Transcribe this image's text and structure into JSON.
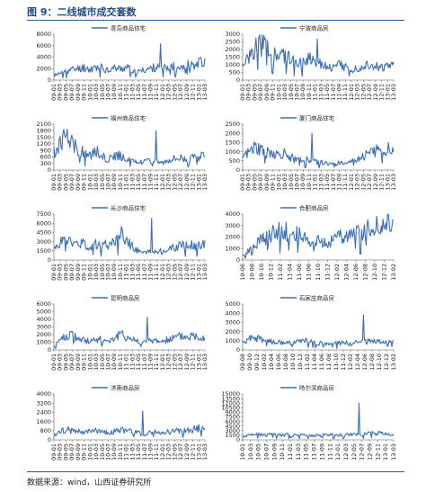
{
  "figure": {
    "title": "图 9：二线城市成交套数",
    "source": "数据来源：wind，山西证券研究所"
  },
  "chart_data": [
    {
      "type": "line",
      "series": [
        {
          "name": "青岛商品住宅"
        }
      ],
      "ylim": [
        0,
        8000
      ],
      "yticks": [
        0,
        2000,
        4000,
        6000,
        8000
      ],
      "categories": [
        "09-01",
        "09-03",
        "09-05",
        "09-07",
        "09-09",
        "09-11",
        "10-01",
        "10-03",
        "10-05",
        "10-07",
        "10-09",
        "10-11",
        "11-01",
        "11-03",
        "11-05",
        "11-07",
        "11-09",
        "11-11",
        "12-01",
        "12-03",
        "12-05",
        "12-07",
        "12-09",
        "12-11",
        "13-01",
        "13-03"
      ],
      "values": [
        900,
        1100,
        1600,
        1800,
        2000,
        2200,
        1900,
        2300,
        2100,
        1800,
        2100,
        2000,
        2200,
        1700,
        1400,
        1800,
        2000,
        2300,
        1900,
        2200,
        2400,
        2500,
        2600,
        2800,
        3000,
        3500
      ],
      "peak": 6300,
      "color": "#3b6eb4"
    },
    {
      "type": "line",
      "series": [
        {
          "name": "宁波商品房"
        }
      ],
      "ylim": [
        0,
        3000
      ],
      "yticks": [
        0,
        500,
        1000,
        1500,
        2000,
        2500,
        3000
      ],
      "categories": [
        "09-01",
        "09-03",
        "09-05",
        "09-07",
        "09-09",
        "09-11",
        "10-01",
        "10-03",
        "10-05",
        "10-07",
        "10-09",
        "10-11",
        "11-01",
        "11-03",
        "11-05",
        "11-07",
        "11-09",
        "11-11",
        "12-01",
        "12-03",
        "12-05",
        "12-07",
        "12-09",
        "12-11",
        "13-01",
        "13-03"
      ],
      "values": [
        900,
        1400,
        2000,
        2300,
        2100,
        1800,
        1500,
        1600,
        1300,
        1000,
        1200,
        1500,
        1300,
        1100,
        900,
        800,
        1000,
        900,
        700,
        800,
        900,
        1100,
        900,
        800,
        900,
        1000
      ],
      "peak": 2700,
      "color": "#3b6eb4"
    },
    {
      "type": "line",
      "series": [
        {
          "name": "福州商品住宅"
        }
      ],
      "ylim": [
        0,
        2100
      ],
      "yticks": [
        0,
        300,
        600,
        900,
        1200,
        1500,
        1800,
        2100
      ],
      "categories": [
        "09-01",
        "09-03",
        "09-05",
        "09-07",
        "09-09",
        "09-11",
        "10-01",
        "10-03",
        "10-05",
        "10-07",
        "10-09",
        "10-11",
        "11-01",
        "11-03",
        "11-05",
        "11-07",
        "11-09",
        "11-11",
        "12-01",
        "12-03",
        "12-05",
        "12-07",
        "12-09",
        "12-11",
        "13-01",
        "13-03"
      ],
      "values": [
        800,
        1200,
        1500,
        1300,
        900,
        800,
        700,
        900,
        600,
        500,
        700,
        650,
        500,
        400,
        350,
        400,
        450,
        400,
        350,
        500,
        550,
        600,
        500,
        550,
        600,
        700
      ],
      "peak": 1800,
      "color": "#3b6eb4"
    },
    {
      "type": "line",
      "series": [
        {
          "name": "厦门商品住宅"
        }
      ],
      "ylim": [
        0,
        2500
      ],
      "yticks": [
        0,
        500,
        1000,
        1500,
        2000,
        2500
      ],
      "categories": [
        "09-01",
        "09-03",
        "09-05",
        "09-07",
        "09-09",
        "09-11",
        "10-01",
        "10-03",
        "10-05",
        "10-07",
        "10-09",
        "10-11",
        "11-01",
        "11-03",
        "11-05",
        "11-07",
        "11-09",
        "11-11",
        "12-01",
        "12-03",
        "12-05",
        "12-07",
        "12-09",
        "12-11",
        "13-01",
        "13-03"
      ],
      "values": [
        700,
        900,
        1200,
        1100,
        1000,
        900,
        800,
        900,
        700,
        500,
        600,
        500,
        450,
        400,
        350,
        300,
        400,
        350,
        450,
        600,
        800,
        900,
        1000,
        1100,
        1200,
        1400
      ],
      "peak": 2000,
      "color": "#3b6eb4"
    },
    {
      "type": "line",
      "series": [
        {
          "name": "长沙商品住宅"
        }
      ],
      "ylim": [
        0,
        7500
      ],
      "yticks": [
        0,
        1500,
        3000,
        4500,
        6000,
        7500
      ],
      "categories": [
        "09-01",
        "09-03",
        "09-05",
        "09-07",
        "09-09",
        "09-11",
        "10-01",
        "10-03",
        "10-05",
        "10-07",
        "10-09",
        "10-11",
        "11-01",
        "11-03",
        "11-05",
        "11-07",
        "11-09",
        "11-11",
        "12-01",
        "12-03",
        "12-05",
        "12-07",
        "12-09",
        "12-11",
        "13-01",
        "13-03"
      ],
      "values": [
        1500,
        2800,
        3200,
        2900,
        2500,
        2700,
        2200,
        2500,
        2400,
        2600,
        3200,
        4300,
        3000,
        2200,
        1500,
        1200,
        1300,
        1500,
        1400,
        1800,
        2000,
        2300,
        2500,
        2400,
        2600,
        2700
      ],
      "peak": 6800,
      "color": "#3b6eb4"
    },
    {
      "type": "line",
      "series": [
        {
          "name": "合肥商品房"
        }
      ],
      "ylim": [
        0,
        4000
      ],
      "yticks": [
        0,
        1000,
        2000,
        3000,
        4000
      ],
      "categories": [
        "10-06",
        "10-08",
        "10-10",
        "10-12",
        "11-02",
        "11-04",
        "11-06",
        "11-08",
        "11-10",
        "11-12",
        "12-02",
        "12-04",
        "12-06",
        "12-08",
        "12-10",
        "12-12",
        "13-02"
      ],
      "values": [
        400,
        1200,
        1800,
        2200,
        2600,
        2400,
        2100,
        1800,
        1600,
        1500,
        1900,
        2200,
        2400,
        2600,
        2800,
        3000,
        3200
      ],
      "peak": 3500,
      "color": "#3b6eb4"
    },
    {
      "type": "line",
      "series": [
        {
          "name": "昆明商品房"
        }
      ],
      "ylim": [
        0,
        6000
      ],
      "yticks": [
        0,
        1000,
        2000,
        3000,
        4000,
        5000,
        6000
      ],
      "categories": [
        "09-01",
        "09-03",
        "09-05",
        "09-07",
        "09-09",
        "09-11",
        "10-01",
        "10-03",
        "10-05",
        "10-07",
        "10-09",
        "10-11",
        "11-01",
        "11-03",
        "11-05",
        "11-07",
        "11-09",
        "11-11",
        "12-01",
        "12-03",
        "12-05",
        "12-07",
        "12-09",
        "12-11",
        "13-01",
        "13-03"
      ],
      "values": [
        800,
        1200,
        1800,
        2000,
        1500,
        1300,
        1200,
        1400,
        1300,
        1200,
        1500,
        2000,
        1700,
        1400,
        1100,
        1000,
        1200,
        1300,
        1100,
        1400,
        1600,
        1800,
        1700,
        1900,
        1800,
        1700
      ],
      "peak": 4300,
      "color": "#3b6eb4"
    },
    {
      "type": "line",
      "series": [
        {
          "name": "石家庄商品房"
        }
      ],
      "ylim": [
        0,
        5000
      ],
      "yticks": [
        0,
        1000,
        2000,
        3000,
        4000,
        5000
      ],
      "categories": [
        "09-08",
        "09-10",
        "09-12",
        "10-02",
        "10-04",
        "10-06",
        "10-08",
        "10-10",
        "10-12",
        "11-02",
        "11-04",
        "11-06",
        "11-08",
        "11-10",
        "11-12",
        "12-02",
        "12-04",
        "12-06",
        "12-08",
        "12-10",
        "12-12",
        "13-02"
      ],
      "values": [
        900,
        1200,
        1300,
        1000,
        900,
        800,
        700,
        800,
        900,
        1000,
        800,
        700,
        600,
        700,
        800,
        700,
        800,
        900,
        1000,
        900,
        800,
        900
      ],
      "peak": 3800,
      "color": "#3b6eb4"
    },
    {
      "type": "line",
      "series": [
        {
          "name": "济南商品房"
        }
      ],
      "ylim": [
        0,
        4000
      ],
      "yticks": [
        0,
        800,
        1600,
        2400,
        3200,
        4000
      ],
      "categories": [
        "09-01",
        "09-03",
        "09-05",
        "09-07",
        "09-09",
        "09-11",
        "10-01",
        "10-03",
        "10-05",
        "10-07",
        "10-09",
        "10-11",
        "11-01",
        "11-03",
        "11-05",
        "11-07",
        "11-09",
        "11-11",
        "12-01",
        "12-03",
        "12-05",
        "12-07",
        "12-09",
        "12-11",
        "13-01",
        "13-03"
      ],
      "values": [
        400,
        700,
        900,
        800,
        700,
        600,
        700,
        800,
        700,
        600,
        700,
        800,
        900,
        700,
        600,
        500,
        600,
        700,
        600,
        700,
        800,
        900,
        800,
        900,
        1000,
        1100
      ],
      "peak": 2500,
      "color": "#3b6eb4"
    },
    {
      "type": "line",
      "series": [
        {
          "name": "哈尔滨商品房"
        }
      ],
      "ylim": [
        0,
        15000
      ],
      "yticks": [
        0,
        1500,
        3000,
        4500,
        6000,
        7500,
        9000,
        10500,
        12000,
        13500,
        15000
      ],
      "categories": [
        "10-01",
        "10-03",
        "10-05",
        "10-07",
        "10-09",
        "10-11",
        "11-01",
        "11-03",
        "11-05",
        "11-07",
        "11-09",
        "11-11",
        "12-01",
        "12-03",
        "12-05",
        "12-07",
        "12-09",
        "12-11",
        "13-01",
        "13-03"
      ],
      "values": [
        1000,
        1500,
        1800,
        1600,
        1700,
        1500,
        1800,
        1600,
        1500,
        1400,
        1500,
        1600,
        1500,
        1700,
        1600,
        1800,
        2000,
        2200,
        1800,
        1600
      ],
      "peak": 12000,
      "color": "#3b6eb4"
    }
  ]
}
